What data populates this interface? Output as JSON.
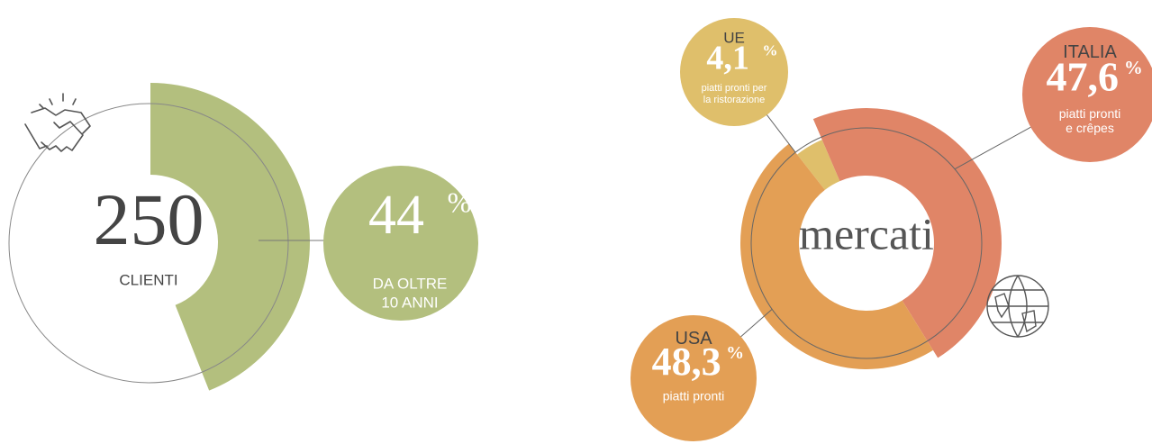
{
  "clients": {
    "value": 250,
    "label": "CLIENTI",
    "color": "#b3bf7e",
    "share": {
      "value": 44,
      "unit": "%",
      "label_lines": [
        "DA OLTRE",
        "10 ANNI"
      ]
    }
  },
  "markets": {
    "title": "mercati",
    "segments": [
      {
        "name": "UE",
        "value": 4.1,
        "value_label": "4,1",
        "unit": "%",
        "color": "#dfbf6b",
        "note_lines": [
          "piatti pronti per",
          "la ristorazione"
        ]
      },
      {
        "name": "ITALIA",
        "value": 47.6,
        "value_label": "47,6",
        "unit": "%",
        "color": "#e08567",
        "note_lines": [
          "piatti pronti",
          "e crêpes"
        ]
      },
      {
        "name": "USA",
        "value": 48.3,
        "value_label": "48,3",
        "unit": "%",
        "color": "#e39f55",
        "note_lines": [
          "piatti pronti"
        ]
      }
    ]
  }
}
